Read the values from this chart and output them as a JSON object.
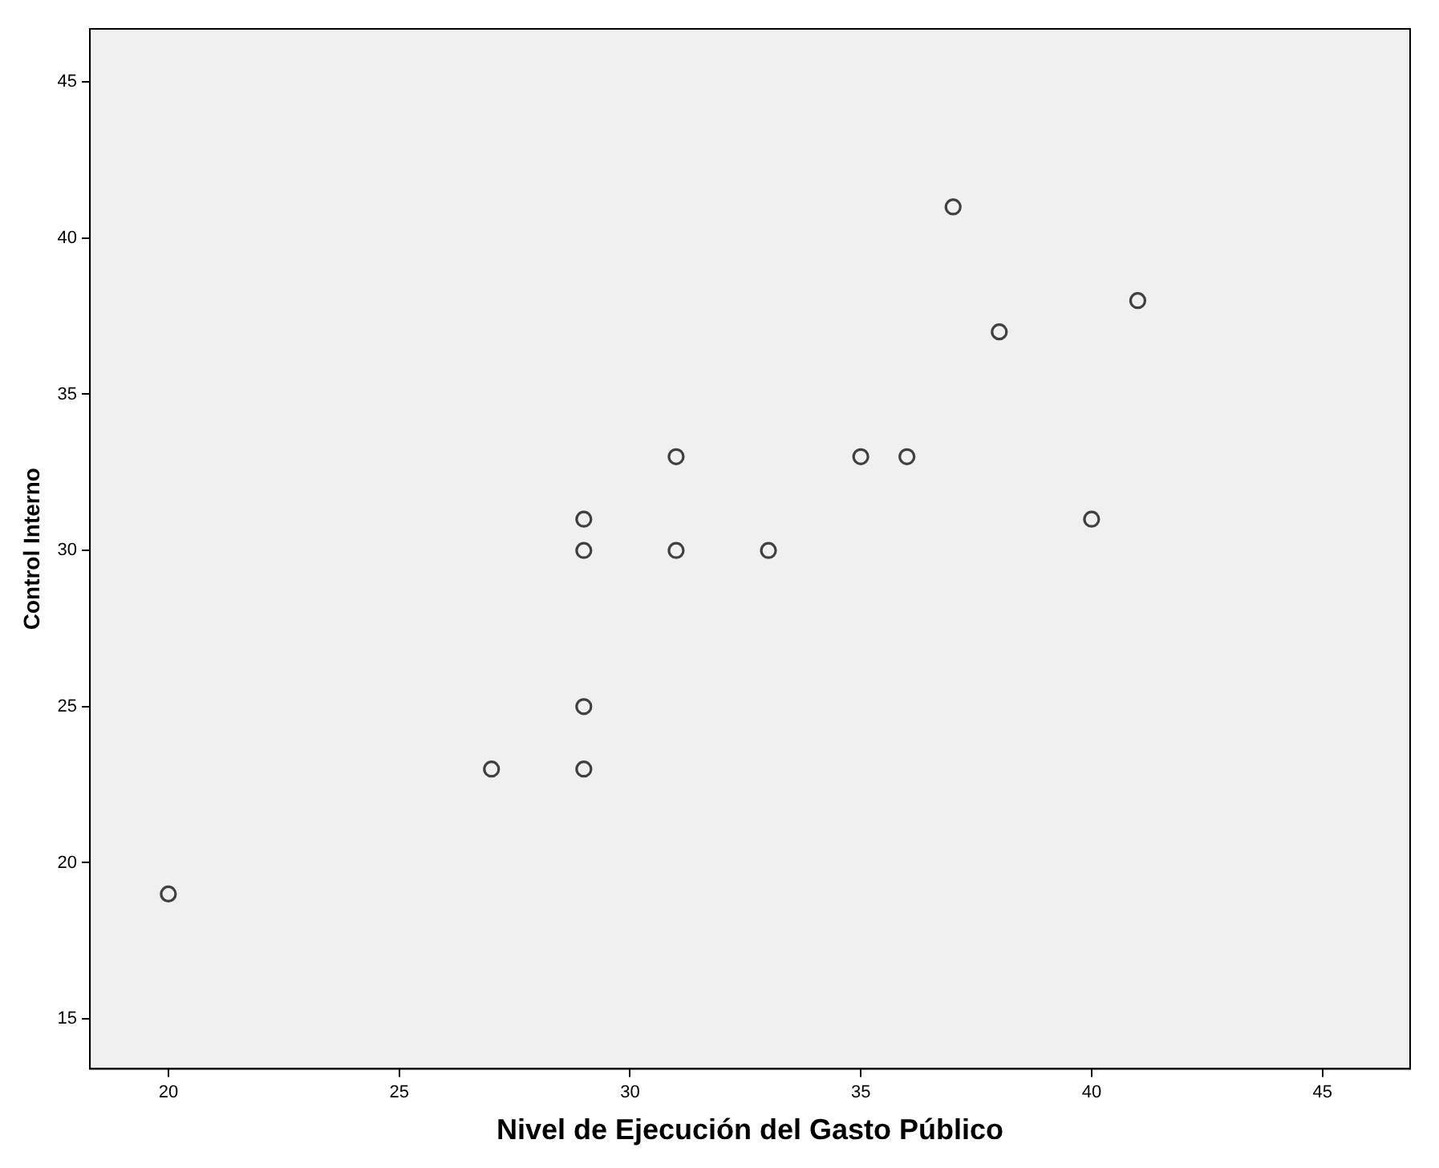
{
  "chart_data": {
    "type": "scatter",
    "xlabel": "Nivel de Ejecución del Gasto Público",
    "ylabel": "Control Interno",
    "x": [
      20,
      27,
      29,
      29,
      29,
      29,
      31,
      31,
      33,
      35,
      36,
      37,
      38,
      40,
      41
    ],
    "series": [
      {
        "color": "#404040",
        "values": [
          19,
          23,
          23,
          25,
          30,
          31,
          33,
          30,
          30,
          33,
          33,
          41,
          37,
          31,
          38
        ]
      }
    ],
    "xlim": [
      18.3,
      46.9
    ],
    "ylim": [
      13.4,
      46.7
    ],
    "xticks": [
      20,
      25,
      30,
      35,
      40,
      45
    ],
    "yticks": [
      15,
      20,
      25,
      30,
      35,
      40,
      45
    ],
    "marker": "circle",
    "grid": false,
    "legend": false
  }
}
